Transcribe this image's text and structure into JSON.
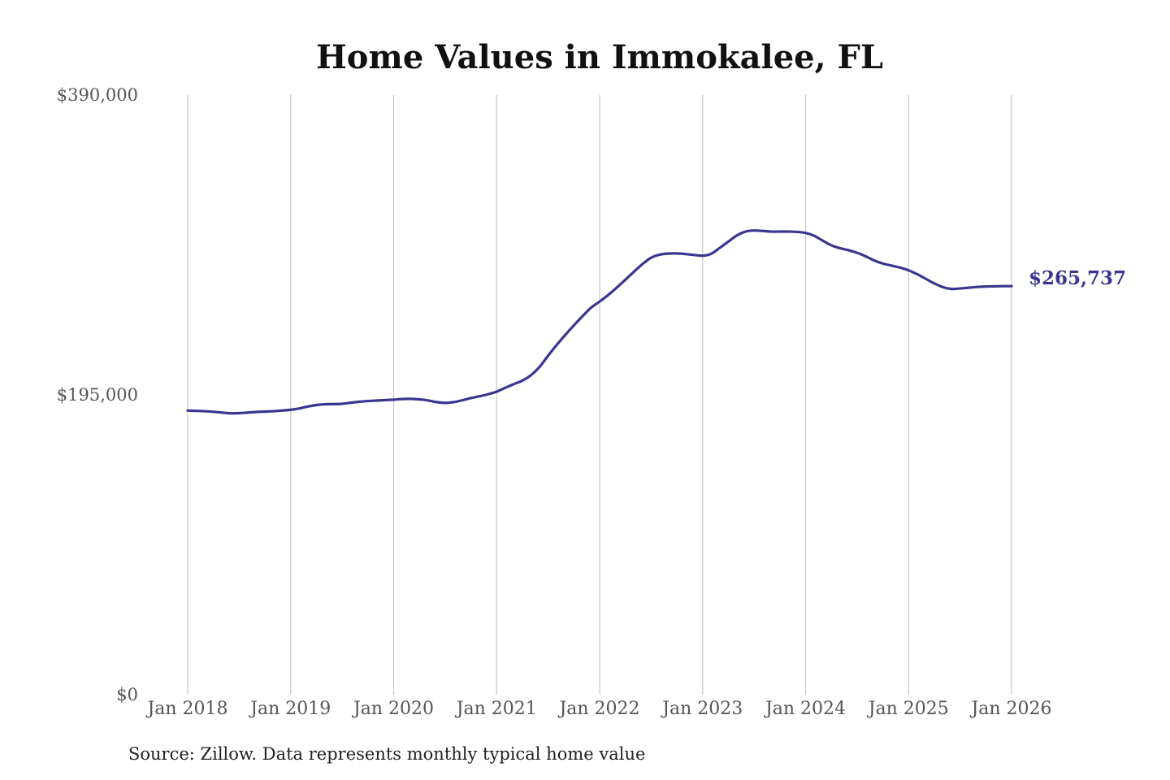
{
  "chart_data": {
    "type": "line",
    "title": "Home Values in Immokalee, FL",
    "xlabel": "",
    "ylabel": "",
    "ylim": [
      0,
      390000
    ],
    "y_ticks": [
      {
        "value": 0,
        "label": "$0"
      },
      {
        "value": 195000,
        "label": "$195,000"
      },
      {
        "value": 390000,
        "label": "$390,000"
      }
    ],
    "x_range": [
      "2018-01",
      "2026-01"
    ],
    "x_ticks": [
      "Jan 2018",
      "Jan 2019",
      "Jan 2020",
      "Jan 2021",
      "Jan 2022",
      "Jan 2023",
      "Jan 2024",
      "Jan 2025",
      "Jan 2026"
    ],
    "grid": "vertical",
    "line_color": "#3a3590",
    "end_label": "$265,737",
    "series": [
      {
        "x": [
          "2018-01",
          "2018-02",
          "2018-03",
          "2018-04",
          "2018-05",
          "2018-06",
          "2018-07",
          "2018-08",
          "2018-09",
          "2018-10",
          "2018-11",
          "2018-12",
          "2019-01",
          "2019-02",
          "2019-03",
          "2019-04",
          "2019-05",
          "2019-06",
          "2019-07",
          "2019-08",
          "2019-09",
          "2019-10",
          "2019-11",
          "2019-12",
          "2020-01",
          "2020-02",
          "2020-03",
          "2020-04",
          "2020-05",
          "2020-06",
          "2020-07",
          "2020-08",
          "2020-09",
          "2020-10",
          "2020-11",
          "2020-12",
          "2021-01",
          "2021-02",
          "2021-03",
          "2021-04",
          "2021-05",
          "2021-06",
          "2021-07",
          "2021-08",
          "2021-09",
          "2021-10",
          "2021-11",
          "2021-12",
          "2022-01",
          "2022-02",
          "2022-03",
          "2022-04",
          "2022-05",
          "2022-06",
          "2022-07",
          "2022-08",
          "2022-09",
          "2022-10",
          "2022-11",
          "2022-12",
          "2023-01",
          "2023-02",
          "2023-03",
          "2023-04",
          "2023-05",
          "2023-06",
          "2023-07",
          "2023-08",
          "2023-09",
          "2023-10",
          "2023-11",
          "2023-12",
          "2024-01",
          "2024-02",
          "2024-03",
          "2024-04",
          "2024-05",
          "2024-06",
          "2024-07",
          "2024-08",
          "2024-09",
          "2024-10",
          "2024-11",
          "2024-12",
          "2025-01",
          "2025-02",
          "2025-03",
          "2025-04",
          "2025-05",
          "2025-06",
          "2025-07",
          "2025-08",
          "2025-09",
          "2025-10",
          "2025-11",
          "2025-12",
          "2026-01"
        ],
        "values": [
          184800,
          184600,
          184400,
          184000,
          183500,
          183000,
          183100,
          183500,
          183900,
          184100,
          184400,
          184800,
          185300,
          186200,
          187400,
          188400,
          188900,
          189000,
          189200,
          189900,
          190500,
          191000,
          191300,
          191600,
          191900,
          192300,
          192400,
          192100,
          191400,
          190300,
          189800,
          190300,
          191500,
          192900,
          194100,
          195400,
          197100,
          199600,
          202000,
          204300,
          207800,
          213200,
          220500,
          227500,
          234000,
          240200,
          246100,
          251700,
          255700,
          260000,
          264800,
          269900,
          275100,
          280100,
          284200,
          286200,
          286900,
          287000,
          286600,
          286000,
          285500,
          286800,
          290600,
          294700,
          298700,
          301200,
          301900,
          301600,
          301200,
          301200,
          301200,
          301000,
          300300,
          298500,
          295300,
          292300,
          290400,
          289100,
          287400,
          285100,
          282400,
          280400,
          279100,
          277800,
          276000,
          273500,
          270500,
          267500,
          265100,
          263900,
          264200,
          264700,
          265200,
          265500,
          265600,
          265700,
          265737
        ]
      }
    ]
  },
  "footer": {
    "source": "Source: Zillow. Data represents monthly typical home value"
  }
}
